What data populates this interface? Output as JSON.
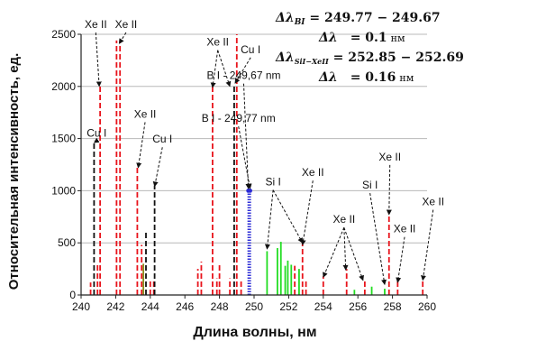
{
  "chart_data": {
    "type": "bar",
    "xlabel": "Длина волны, нм",
    "ylabel": "Относительная интенсивность, ед.",
    "xlim": [
      240,
      260
    ],
    "ylim": [
      0,
      2500
    ],
    "xticks": [
      "240",
      "242",
      "244",
      "246",
      "248",
      "250",
      "252",
      "254",
      "256",
      "258",
      "260"
    ],
    "yticks": [
      "0",
      "500",
      "1000",
      "1500",
      "2000",
      "2500"
    ],
    "grid": "horizontal",
    "colors": {
      "red": "#e8141c",
      "black": "#111111",
      "green": "#22dd22",
      "blue": "#2b2bd6",
      "olive": "#8a8a1a"
    },
    "series": [
      {
        "color": "red",
        "style": "dashed",
        "x": [
          240.55,
          240.95,
          241.1,
          242.05,
          242.25,
          243.25,
          243.5,
          244.0,
          244.2,
          246.75,
          246.95,
          247.6,
          247.85,
          248.0,
          248.6,
          249.0,
          249.25,
          252.35,
          252.8,
          253.0,
          254.0,
          255.35,
          256.4,
          257.8,
          258.3,
          259.75
        ],
        "values": [
          120,
          300,
          2000,
          2440,
          2440,
          1240,
          480,
          150,
          150,
          250,
          320,
          2000,
          160,
          310,
          160,
          2500,
          150,
          280,
          520,
          150,
          180,
          250,
          150,
          790,
          130,
          140
        ]
      },
      {
        "color": "black",
        "style": "dashed",
        "x": [
          240.75,
          243.75,
          244.25,
          248.85
        ],
        "values": [
          1480,
          600,
          1050,
          2000
        ]
      },
      {
        "color": "green",
        "style": "solid",
        "x": [
          250.75,
          251.35,
          251.55,
          251.8,
          251.95,
          252.15,
          252.6,
          255.8,
          256.8,
          257.55
        ],
        "values": [
          420,
          450,
          510,
          280,
          330,
          290,
          250,
          50,
          80,
          60
        ]
      },
      {
        "color": "blue",
        "style": "dotted",
        "x": [
          249.67,
          249.77
        ],
        "values": [
          1000,
          1000
        ]
      },
      {
        "color": "olive",
        "style": "solid",
        "x": [
          243.6
        ],
        "values": [
          300
        ]
      }
    ],
    "annotations": [
      {
        "text": "Xe II",
        "x": 240.85,
        "y": 2560,
        "points": [
          [
            241.05,
            2000
          ]
        ]
      },
      {
        "text": "Xe II",
        "x": 242.6,
        "y": 2560,
        "points": [
          [
            242.2,
            2410
          ]
        ]
      },
      {
        "text": "Cu I",
        "x": 240.9,
        "y": 1520,
        "points": [
          [
            240.75,
            1460
          ]
        ]
      },
      {
        "text": "Xe II",
        "x": 243.7,
        "y": 1700,
        "points": [
          [
            243.3,
            1220
          ]
        ]
      },
      {
        "text": "Cu I",
        "x": 244.7,
        "y": 1460,
        "points": [
          [
            244.25,
            1040
          ]
        ]
      },
      {
        "text": "Xe II",
        "x": 247.9,
        "y": 2390,
        "points": [
          [
            247.6,
            1990
          ],
          [
            248.6,
            2000
          ]
        ]
      },
      {
        "text": "Cu I",
        "x": 249.8,
        "y": 2320,
        "points": [
          [
            248.9,
            2030
          ]
        ]
      },
      {
        "text": "B I - 249,67 nm",
        "x": 249.4,
        "y": 2070,
        "points": [
          [
            249.67,
            1020
          ]
        ]
      },
      {
        "text": "B I - 249,77 nm",
        "x": 249.1,
        "y": 1660,
        "points": [
          [
            249.77,
            1020
          ]
        ]
      },
      {
        "text": "Si I",
        "x": 251.1,
        "y": 1050,
        "points": [
          [
            250.75,
            440
          ],
          [
            252.8,
            500
          ]
        ]
      },
      {
        "text": "Xe II",
        "x": 253.4,
        "y": 1140,
        "points": [
          [
            252.8,
            480
          ]
        ]
      },
      {
        "text": "Xe II",
        "x": 255.2,
        "y": 690,
        "points": [
          [
            254.0,
            170
          ],
          [
            255.3,
            240
          ],
          [
            256.3,
            140
          ]
        ]
      },
      {
        "text": "Xe II",
        "x": 257.85,
        "y": 1290,
        "points": [
          [
            257.8,
            770
          ]
        ]
      },
      {
        "text": "Si I",
        "x": 256.7,
        "y": 1020,
        "points": [
          [
            257.55,
            100
          ]
        ]
      },
      {
        "text": "Xe II",
        "x": 258.7,
        "y": 600,
        "points": [
          [
            258.3,
            120
          ]
        ]
      },
      {
        "text": "Xe II",
        "x": 260.35,
        "y": 860,
        "points": [
          [
            259.75,
            140
          ]
        ]
      }
    ]
  },
  "formula": {
    "line1_lhs": "Δλ",
    "line1_sub": "BI",
    "line1_rhs": " = 249.77 − 249.67",
    "line2_lhs": "Δλ",
    "line2_value": "= 0.1",
    "line2_unit": "нм",
    "line3_lhs": "Δλ",
    "line3_sub": "SiI−XeII",
    "line3_rhs": " = 252.85 − 252.69",
    "line4_lhs": "Δλ",
    "line4_value": "= 0.16",
    "line4_unit": "нм"
  }
}
